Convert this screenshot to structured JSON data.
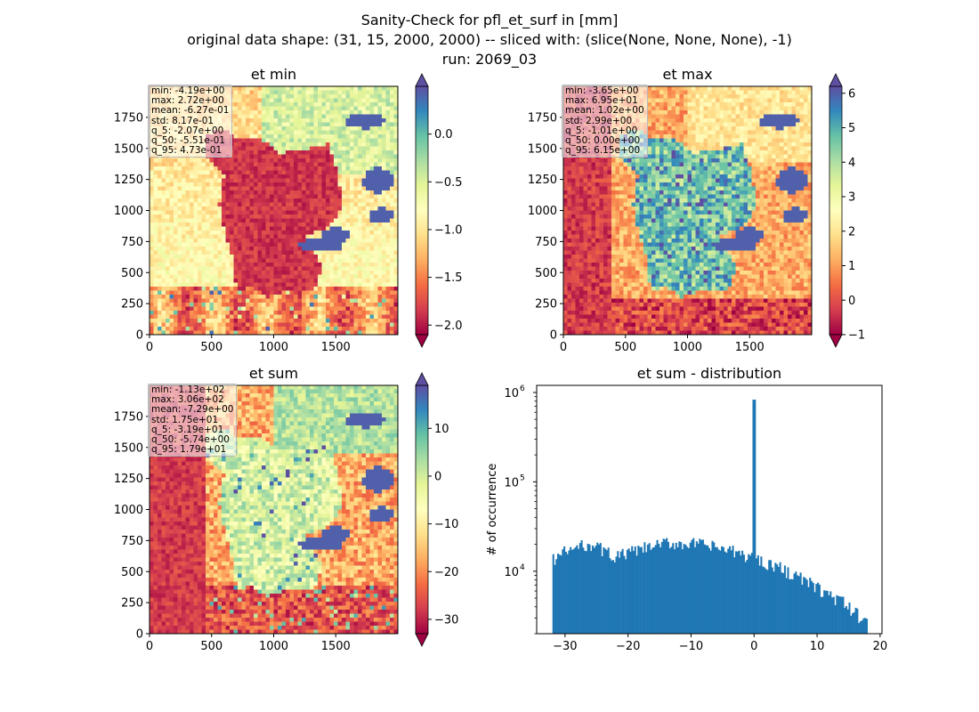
{
  "figure": {
    "title_lines": [
      "Sanity-Check for pfl_et_surf in [mm]",
      "original data shape: (31, 15, 2000, 2000) -- sliced with: (slice(None, None, None), -1)",
      "run: 2069_03"
    ]
  },
  "colors": {
    "colormap": "Spectral",
    "hist_bar": "#1f77b4"
  },
  "chart_data": [
    {
      "type": "heatmap",
      "title": "et min",
      "xlim": [
        0,
        2000
      ],
      "ylim": [
        0,
        2000
      ],
      "xticks": [
        0,
        500,
        1000,
        1500
      ],
      "yticks": [
        0,
        250,
        500,
        750,
        1000,
        1250,
        1500,
        1750
      ],
      "colorbar": {
        "range": [
          -2.1,
          0.5
        ],
        "ticks": [
          0.0,
          -0.5,
          -1.0,
          -1.5,
          -2.0
        ],
        "tick_labels": [
          "0.0",
          "−0.5",
          "−1.0",
          "−1.5",
          "−2.0"
        ],
        "extend": "both"
      },
      "stats": [
        "min: -4.19e+00",
        "max: 2.72e+00",
        "mean: -6.27e-01",
        "std: 8.17e-01",
        "q_5: -2.07e+00",
        "q_50: -5.51e-01",
        "q_95: 4.73e-01"
      ]
    },
    {
      "type": "heatmap",
      "title": "et max",
      "xlim": [
        0,
        2000
      ],
      "ylim": [
        0,
        2000
      ],
      "xticks": [
        0,
        500,
        1000,
        1500
      ],
      "yticks": [
        0,
        250,
        500,
        750,
        1000,
        1250,
        1500,
        1750
      ],
      "colorbar": {
        "range": [
          -1.0,
          6.2
        ],
        "ticks": [
          6,
          5,
          4,
          3,
          2,
          1,
          0,
          -1
        ],
        "tick_labels": [
          "6",
          "5",
          "4",
          "3",
          "2",
          "1",
          "0",
          "−1"
        ],
        "extend": "both"
      },
      "stats": [
        "min: -3.65e+00",
        "max: 6.95e+01",
        "mean: 1.02e+00",
        "std: 2.99e+00",
        "q_5: -1.01e+00",
        "q_50: 0.00e+00",
        "q_95: 6.15e+00"
      ]
    },
    {
      "type": "heatmap",
      "title": "et sum",
      "xlim": [
        0,
        2000
      ],
      "ylim": [
        0,
        2000
      ],
      "xticks": [
        0,
        500,
        1000,
        1500
      ],
      "yticks": [
        0,
        250,
        500,
        750,
        1000,
        1250,
        1500,
        1750
      ],
      "colorbar": {
        "range": [
          -33,
          19
        ],
        "ticks": [
          10,
          0,
          -10,
          -20,
          -30
        ],
        "tick_labels": [
          "10",
          "0",
          "−10",
          "−20",
          "−30"
        ],
        "extend": "both"
      },
      "stats": [
        "min: -1.13e+02",
        "max: 3.06e+02",
        "mean: -7.29e+00",
        "std: 1.75e+01",
        "q_5: -3.19e+01",
        "q_50: -5.74e+00",
        "q_95: 1.79e+01"
      ]
    },
    {
      "type": "bar",
      "title": "et sum - distribution",
      "ylabel": "# of occurrence",
      "xlabel": "",
      "yscale": "log",
      "xlim": [
        -34.5,
        20.3
      ],
      "ylim": [
        2000,
        1200000
      ],
      "xticks": [
        -30,
        -20,
        -10,
        0,
        10,
        20
      ],
      "xtick_labels": [
        "−30",
        "−20",
        "−10",
        "0",
        "10",
        "20"
      ],
      "yticks": [
        10000,
        100000,
        1000000
      ],
      "ytick_labels": [
        "10^4",
        "10^5",
        "10^6"
      ],
      "bin_range": [
        -32,
        18
      ],
      "bin_count": 200,
      "spike": {
        "x": 0,
        "count": 830000
      },
      "profile": {
        "x": [
          -32,
          -30,
          -26,
          -22,
          -18,
          -14,
          -10,
          -6,
          -2,
          2,
          6,
          10,
          14,
          17,
          18
        ],
        "count": [
          13500,
          16500,
          20500,
          14500,
          17500,
          20500,
          20500,
          18500,
          15500,
          12500,
          9500,
          6500,
          4500,
          3000,
          3000
        ]
      }
    }
  ]
}
